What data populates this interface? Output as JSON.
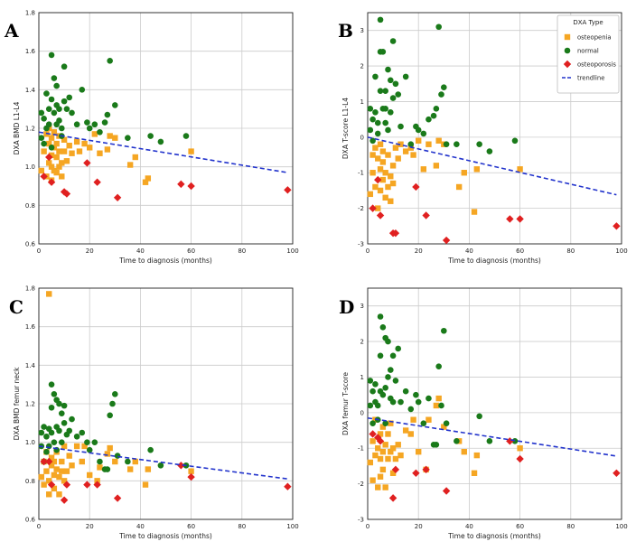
{
  "colors": {
    "osteopenia": "#f5a623",
    "normal": "#1a7a1a",
    "osteoporosis": "#e02020",
    "trendline": "#2233cc",
    "grid": "#cccccc"
  },
  "legend": {
    "title": "DXA Type",
    "items": [
      "osteopenia",
      "normal",
      "osteoporosis",
      "trendline"
    ]
  },
  "chart_data": [
    {
      "type": "scatter",
      "panel": "A",
      "xlabel": "Time to diagnosis (months)",
      "ylabel": "DXA BMD L1-L4",
      "xlim": [
        0,
        100
      ],
      "ylim": [
        0.6,
        1.8
      ],
      "xticks": [
        0,
        20,
        40,
        60,
        80,
        100
      ],
      "yticks": [
        0.6,
        0.8,
        1.0,
        1.2,
        1.4,
        1.6,
        1.8
      ],
      "trendline": [
        [
          0,
          1.18
        ],
        [
          98,
          0.97
        ]
      ],
      "series": [
        {
          "name": "osteopenia",
          "x": [
            1,
            2,
            3,
            3,
            4,
            4,
            4,
            5,
            5,
            5,
            5,
            6,
            6,
            6,
            7,
            7,
            7,
            8,
            8,
            8,
            9,
            9,
            10,
            10,
            11,
            12,
            13,
            15,
            16,
            18,
            20,
            22,
            24,
            27,
            28,
            30,
            36,
            38,
            42,
            43,
            60
          ],
          "y": [
            0.98,
            1.08,
            1.17,
            0.95,
            1.12,
            1.02,
            1.2,
            1.15,
            1.06,
            1.0,
            0.93,
            1.1,
            0.98,
            1.18,
            1.05,
            0.97,
            1.12,
            1.0,
            1.08,
            1.16,
            1.02,
            0.95,
            1.08,
            1.14,
            1.03,
            1.11,
            1.07,
            1.13,
            1.08,
            1.12,
            1.1,
            1.17,
            1.07,
            1.09,
            1.16,
            1.15,
            1.01,
            1.05,
            0.92,
            0.94,
            1.08
          ]
        },
        {
          "name": "normal",
          "x": [
            1,
            1,
            2,
            2,
            3,
            3,
            4,
            4,
            5,
            5,
            5,
            6,
            6,
            7,
            7,
            7,
            8,
            8,
            9,
            9,
            10,
            10,
            11,
            12,
            13,
            15,
            17,
            19,
            20,
            22,
            24,
            26,
            27,
            28,
            30,
            35,
            44,
            48,
            58
          ],
          "y": [
            1.28,
            1.15,
            1.25,
            1.12,
            1.38,
            1.2,
            1.3,
            1.22,
            1.58,
            1.35,
            1.1,
            1.28,
            1.46,
            1.42,
            1.22,
            1.32,
            1.3,
            1.24,
            1.2,
            1.16,
            1.52,
            1.34,
            1.3,
            1.36,
            1.28,
            1.22,
            1.4,
            1.23,
            1.2,
            1.22,
            1.18,
            1.23,
            1.27,
            1.55,
            1.32,
            1.15,
            1.16,
            1.13,
            1.16
          ]
        },
        {
          "name": "osteoporosis",
          "x": [
            2,
            4,
            5,
            10,
            11,
            19,
            23,
            31,
            56,
            60,
            98
          ],
          "y": [
            0.95,
            1.05,
            0.92,
            0.87,
            0.86,
            1.02,
            0.92,
            0.84,
            0.91,
            0.9,
            0.88
          ]
        }
      ]
    },
    {
      "type": "scatter",
      "panel": "B",
      "xlabel": "Time to diagnosis (months)",
      "ylabel": "DXA T-score L1-L4",
      "xlim": [
        0,
        100
      ],
      "ylim": [
        -3,
        3.5
      ],
      "xticks": [
        0,
        20,
        40,
        60,
        80,
        100
      ],
      "yticks": [
        -3,
        -2,
        -1,
        0,
        1,
        2,
        3
      ],
      "trendline": [
        [
          0,
          0.0
        ],
        [
          98,
          -1.62
        ]
      ],
      "series": [
        {
          "name": "osteopenia",
          "x": [
            1,
            2,
            2,
            3,
            3,
            4,
            4,
            5,
            5,
            5,
            6,
            6,
            6,
            7,
            7,
            8,
            8,
            9,
            9,
            10,
            10,
            11,
            12,
            13,
            15,
            17,
            18,
            20,
            22,
            24,
            27,
            28,
            30,
            36,
            38,
            42,
            43,
            60
          ],
          "y": [
            -1.6,
            -0.5,
            -1.0,
            -0.3,
            -1.4,
            -0.6,
            -2.0,
            -0.2,
            -0.9,
            -1.5,
            -1.2,
            -0.4,
            -0.7,
            -1.0,
            -1.7,
            -1.4,
            -0.5,
            -1.1,
            -1.8,
            -0.8,
            -1.3,
            -0.3,
            -0.6,
            -0.2,
            -0.4,
            -0.3,
            -0.5,
            -0.1,
            -0.9,
            -0.2,
            -0.8,
            -0.1,
            -0.2,
            -1.4,
            -1.0,
            -2.1,
            -0.9,
            -0.9
          ]
        },
        {
          "name": "normal",
          "x": [
            1,
            1,
            2,
            2,
            3,
            3,
            4,
            4,
            5,
            5,
            5,
            6,
            6,
            7,
            7,
            7,
            8,
            8,
            9,
            9,
            10,
            10,
            11,
            12,
            13,
            15,
            17,
            19,
            20,
            22,
            24,
            26,
            27,
            28,
            29,
            30,
            31,
            35,
            44,
            48,
            58
          ],
          "y": [
            0.8,
            0.2,
            0.5,
            -0.1,
            1.7,
            0.7,
            0.4,
            0.1,
            3.3,
            2.4,
            1.3,
            2.4,
            0.8,
            1.3,
            0.4,
            0.8,
            1.9,
            0.2,
            1.6,
            0.7,
            2.7,
            1.1,
            1.5,
            1.2,
            0.3,
            1.7,
            -0.2,
            0.3,
            0.2,
            0.1,
            0.5,
            0.6,
            0.8,
            3.1,
            1.2,
            1.4,
            -0.2,
            -0.2,
            -0.2,
            -0.4,
            -0.1
          ]
        },
        {
          "name": "osteoporosis",
          "x": [
            2,
            4,
            5,
            10,
            11,
            19,
            23,
            31,
            56,
            60,
            98
          ],
          "y": [
            -2.0,
            -1.2,
            -2.2,
            -2.7,
            -2.7,
            -1.4,
            -2.2,
            -2.9,
            -2.3,
            -2.3,
            -2.5
          ]
        }
      ]
    },
    {
      "type": "scatter",
      "panel": "C",
      "xlabel": "Time to diagnosis (months)",
      "ylabel": "DXA BMD femur neck",
      "xlim": [
        0,
        100
      ],
      "ylim": [
        0.6,
        1.8
      ],
      "xticks": [
        0,
        20,
        40,
        60,
        80,
        100
      ],
      "yticks": [
        0.6,
        0.8,
        1.0,
        1.2,
        1.4,
        1.6,
        1.8
      ],
      "trendline": [
        [
          0,
          0.98
        ],
        [
          98,
          0.81
        ]
      ],
      "series": [
        {
          "name": "osteopenia",
          "x": [
            1,
            2,
            2,
            3,
            3,
            4,
            4,
            4,
            5,
            5,
            6,
            6,
            6,
            7,
            7,
            8,
            8,
            9,
            9,
            10,
            10,
            11,
            12,
            13,
            15,
            17,
            18,
            20,
            23,
            24,
            27,
            28,
            30,
            36,
            38,
            42,
            43,
            60
          ],
          "y": [
            0.82,
            0.9,
            0.78,
            0.95,
            0.85,
            1.77,
            0.8,
            0.73,
            0.88,
            0.92,
            0.83,
            0.76,
            0.9,
            0.86,
            0.95,
            0.82,
            0.73,
            0.9,
            0.85,
            0.8,
            0.98,
            0.85,
            0.93,
            0.88,
            0.98,
            0.9,
            0.98,
            0.83,
            0.8,
            0.87,
            0.94,
            0.97,
            0.9,
            0.86,
            0.9,
            0.78,
            0.86,
            0.85
          ]
        },
        {
          "name": "normal",
          "x": [
            1,
            1,
            2,
            2,
            3,
            3,
            4,
            4,
            5,
            5,
            5,
            6,
            6,
            7,
            7,
            7,
            8,
            8,
            9,
            9,
            10,
            10,
            11,
            12,
            13,
            15,
            17,
            19,
            20,
            22,
            24,
            26,
            27,
            28,
            29,
            30,
            31,
            35,
            44,
            48,
            58
          ],
          "y": [
            1.05,
            0.98,
            1.08,
            0.9,
            1.03,
            0.95,
            1.07,
            0.98,
            1.3,
            1.18,
            1.05,
            1.25,
            1.0,
            1.22,
            1.08,
            0.96,
            1.2,
            1.06,
            1.15,
            1.0,
            1.19,
            1.1,
            1.04,
            1.06,
            1.12,
            1.03,
            1.05,
            1.0,
            0.96,
            1.0,
            0.9,
            0.86,
            0.86,
            1.14,
            1.2,
            1.25,
            0.93,
            0.9,
            0.96,
            0.88,
            0.88
          ]
        },
        {
          "name": "osteoporosis",
          "x": [
            2,
            4,
            5,
            10,
            11,
            19,
            23,
            31,
            56,
            60,
            98
          ],
          "y": [
            0.9,
            0.9,
            0.78,
            0.7,
            0.78,
            0.78,
            0.78,
            0.71,
            0.88,
            0.82,
            0.77
          ]
        }
      ]
    },
    {
      "type": "scatter",
      "panel": "D",
      "xlabel": "Time to diagnosis (months)",
      "ylabel": "DXA femur T-score",
      "xlim": [
        0,
        100
      ],
      "ylim": [
        -3,
        3.5
      ],
      "xticks": [
        0,
        20,
        40,
        60,
        80,
        100
      ],
      "yticks": [
        -3,
        -2,
        -1,
        0,
        1,
        2,
        3
      ],
      "trendline": [
        [
          0,
          -0.15
        ],
        [
          98,
          -1.22
        ]
      ],
      "series": [
        {
          "name": "osteopenia",
          "x": [
            1,
            2,
            2,
            3,
            3,
            4,
            4,
            5,
            5,
            5,
            6,
            6,
            6,
            7,
            7,
            8,
            8,
            9,
            9,
            10,
            10,
            11,
            12,
            13,
            15,
            17,
            18,
            20,
            23,
            24,
            27,
            28,
            30,
            36,
            38,
            42,
            43,
            60
          ],
          "y": [
            -1.4,
            -0.8,
            -1.9,
            -0.2,
            -1.2,
            -1.0,
            -2.1,
            -0.6,
            -1.3,
            -1.8,
            -1.1,
            -0.4,
            -1.6,
            -0.9,
            -2.1,
            -1.3,
            -0.6,
            -1.1,
            -0.3,
            -1.7,
            -1.0,
            -1.3,
            -0.9,
            -1.2,
            -0.5,
            -0.6,
            -0.2,
            -1.1,
            -1.6,
            -0.2,
            0.2,
            0.4,
            -0.4,
            -0.8,
            -1.1,
            -1.7,
            -1.2,
            -1.0
          ]
        },
        {
          "name": "normal",
          "x": [
            1,
            1,
            2,
            2,
            3,
            3,
            4,
            4,
            5,
            5,
            5,
            6,
            6,
            7,
            7,
            7,
            8,
            8,
            9,
            9,
            10,
            10,
            11,
            12,
            13,
            15,
            17,
            19,
            20,
            22,
            24,
            26,
            27,
            28,
            29,
            30,
            31,
            35,
            44,
            48,
            58
          ],
          "y": [
            0.9,
            0.2,
            0.6,
            -0.3,
            0.8,
            0.3,
            0.2,
            -0.2,
            2.7,
            1.6,
            0.6,
            2.4,
            0.5,
            2.1,
            0.7,
            -0.3,
            2.0,
            1.0,
            1.2,
            0.4,
            1.6,
            0.3,
            0.9,
            1.8,
            0.3,
            0.6,
            0.1,
            0.5,
            0.3,
            -0.3,
            0.4,
            -0.9,
            -0.9,
            1.3,
            0.2,
            2.3,
            -0.3,
            -0.8,
            -0.1,
            -0.8,
            -0.8
          ]
        },
        {
          "name": "osteoporosis",
          "x": [
            2,
            4,
            5,
            10,
            11,
            19,
            23,
            31,
            56,
            60,
            98
          ],
          "y": [
            -0.6,
            -0.7,
            -0.8,
            -2.4,
            -1.6,
            -1.7,
            -1.6,
            -2.2,
            -0.8,
            -1.3,
            -1.7
          ]
        }
      ]
    }
  ]
}
